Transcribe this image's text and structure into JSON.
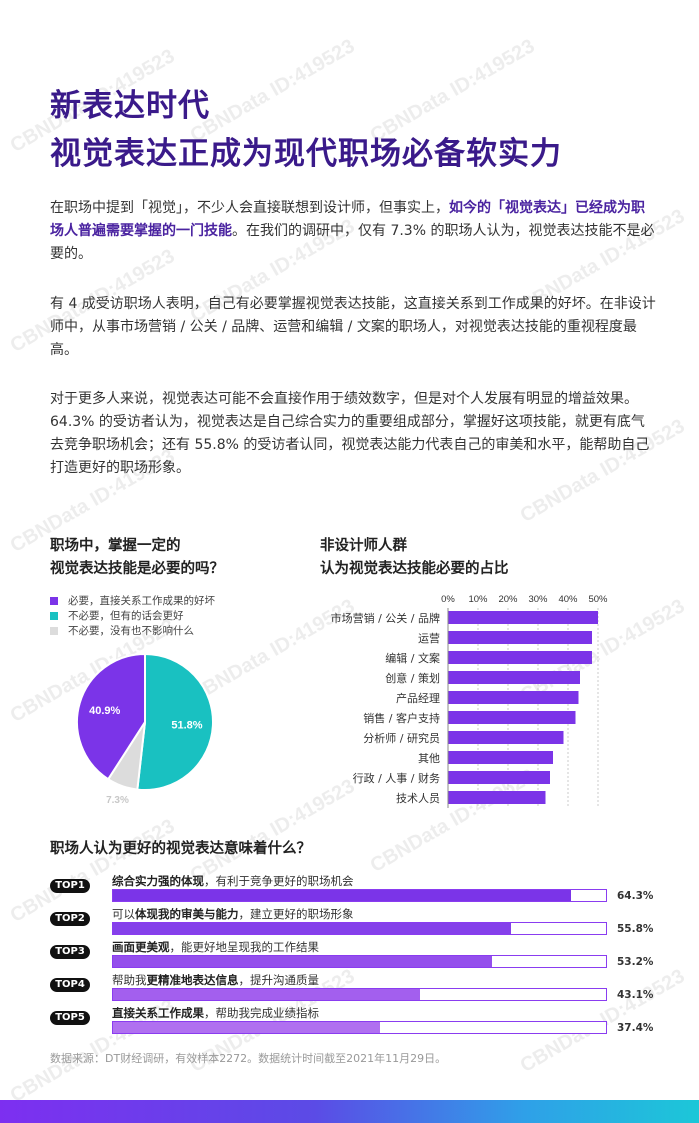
{
  "title": {
    "line1": "新表达时代",
    "line2": "视觉表达正成为现代职场必备软实力"
  },
  "paragraphs": {
    "p1_a": "在职场中提到「视觉」，不少人会直接联想到设计师，但事实上，",
    "p1_b": "如今的「视觉表达」已经成为职场人普遍需要掌握的一门技能",
    "p1_c": "。在我们的调研中，仅有 7.3% 的职场人认为，视觉表达技能不是必要的。",
    "p2": "有 4 成受访职场人表明，自己有必要掌握视觉表达技能，这直接关系到工作成果的好坏。在非设计师中，从事市场营销 / 公关 / 品牌、运营和编辑 / 文案的职场人，对视觉表达技能的重视程度最高。",
    "p3": "对于更多人来说，视觉表达可能不会直接作用于绩效数字，但是对个人发展有明显的增益效果。64.3% 的受访者认为，视觉表达是自己综合实力的重要组成部分，掌握好这项技能，就更有底气去竞争职场机会；还有 55.8% 的受访者认同，视觉表达能力代表自己的审美和水平，能帮助自己打造更好的职场形象。"
  },
  "pie_section": {
    "title_line1": "职场中，掌握一定的",
    "title_line2": "视觉表达技能是必要的吗？",
    "legend": [
      {
        "label": "必要，直接关系工作成果的好坏",
        "color": "#7b34e8"
      },
      {
        "label": "不必要，但有的话会更好",
        "color": "#19c1c1"
      },
      {
        "label": "不必要，没有也不影响什么",
        "color": "#dcdcdc"
      }
    ]
  },
  "bar_section": {
    "title_line1": "非设计师人群",
    "title_line2": "认为视觉表达技能必要的占比"
  },
  "rank_section": {
    "title": "职场人认为更好的视觉表达意味着什么？",
    "items": [
      {
        "badge": "TOP1",
        "bold": "综合实力强的体现",
        "rest": "，有利于竞争更好的职场机会",
        "value_label": "64.3%",
        "value": 64.3,
        "color": "#7b34e8"
      },
      {
        "badge": "TOP2",
        "pre": "可以",
        "bold": "体现我的审美与能力",
        "rest": "，建立更好的职场形象",
        "value_label": "55.8%",
        "value": 55.8,
        "color": "#8540ea"
      },
      {
        "badge": "TOP3",
        "bold": "画面更美观",
        "rest": "，能更好地呈现我的工作结果",
        "value_label": "53.2%",
        "value": 53.2,
        "color": "#944fec"
      },
      {
        "badge": "TOP4",
        "pre": "帮助我",
        "bold": "更精准地表达信息",
        "rest": "，提升沟通质量",
        "value_label": "43.1%",
        "value": 43.1,
        "color": "#a35fee"
      },
      {
        "badge": "TOP5",
        "bold": "直接关系工作成果",
        "rest": "，帮助我完成业绩指标",
        "value_label": "37.4%",
        "value": 37.4,
        "color": "#b070f0"
      }
    ]
  },
  "source": "数据来源：DT财经调研，有效样本2272。数据统计时间截至2021年11月29日。",
  "watermark": "CBNData ID:419523",
  "chart_data": [
    {
      "type": "pie",
      "categories": [
        "必要，直接关系工作成果的好坏",
        "不必要，但有的话会更好",
        "不必要，没有也不影响什么"
      ],
      "values": [
        40.9,
        51.8,
        7.3
      ],
      "labels": [
        "40.9%",
        "51.8%",
        "7.3%"
      ],
      "colors": [
        "#7b34e8",
        "#19c1c1",
        "#dcdcdc"
      ]
    },
    {
      "type": "bar",
      "orientation": "horizontal",
      "categories": [
        "市场营销 / 公关 / 品牌",
        "运营",
        "编辑 / 文案",
        "创意 / 策划",
        "产品经理",
        "销售 / 客户支持",
        "分析师 / 研究员",
        "其他",
        "行政 / 人事 / 财务",
        "技术人员"
      ],
      "values": [
        50,
        48,
        48,
        44,
        43.5,
        42.5,
        38.5,
        35,
        34,
        32.5
      ],
      "xticks": [
        "0%",
        "10%",
        "20%",
        "30%",
        "40%",
        "50%"
      ],
      "xlim": [
        0,
        50
      ],
      "color": "#7b34e8",
      "grid": true
    }
  ]
}
